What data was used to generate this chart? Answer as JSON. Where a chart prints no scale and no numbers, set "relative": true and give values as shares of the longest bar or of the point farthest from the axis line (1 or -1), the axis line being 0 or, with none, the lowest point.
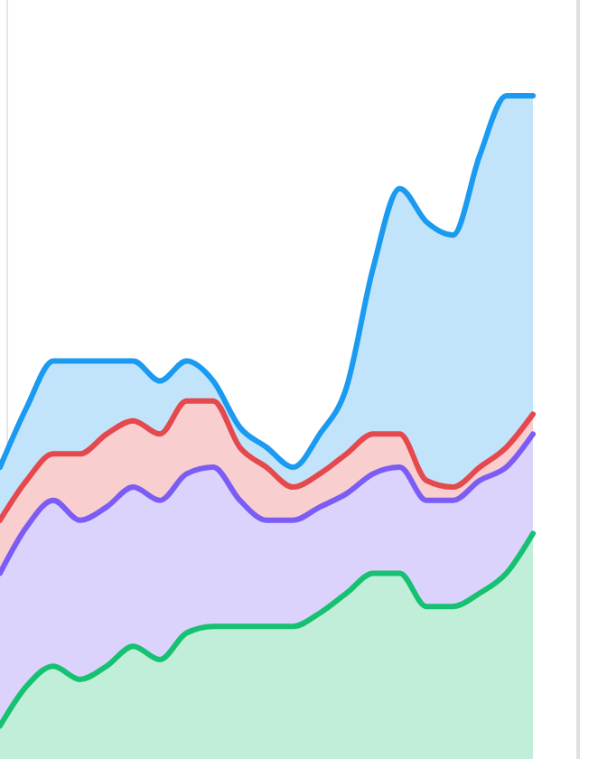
{
  "chart_data": {
    "type": "area",
    "relative": true,
    "categories": [
      null,
      null,
      null,
      null,
      null,
      null,
      null,
      null,
      null,
      null,
      null,
      null,
      null,
      null,
      null,
      null,
      null,
      null,
      null,
      null,
      null
    ],
    "series": [
      {
        "color": "#1a9af0",
        "values": [
          0.44,
          0.53,
          0.6,
          0.6,
          0.6,
          0.6,
          0.57,
          0.6,
          0.57,
          0.5,
          0.47,
          0.44,
          0.49,
          0.56,
          0.74,
          0.86,
          0.81,
          0.79,
          0.91,
          1,
          1
        ]
      },
      {
        "color": "#e5484d",
        "values": [
          0.36,
          0.42,
          0.46,
          0.46,
          0.49,
          0.51,
          0.49,
          0.54,
          0.54,
          0.47,
          0.44,
          0.41,
          0.43,
          0.46,
          0.49,
          0.49,
          0.42,
          0.41,
          0.44,
          0.47,
          0.52
        ]
      },
      {
        "color": "#7b5cf5",
        "values": [
          0.28,
          0.35,
          0.39,
          0.36,
          0.38,
          0.41,
          0.39,
          0.43,
          0.44,
          0.39,
          0.36,
          0.36,
          0.38,
          0.4,
          0.43,
          0.44,
          0.39,
          0.39,
          0.42,
          0.44,
          0.49
        ]
      },
      {
        "color": "#16c172",
        "values": [
          0.05,
          0.11,
          0.14,
          0.12,
          0.14,
          0.17,
          0.15,
          0.19,
          0.2,
          0.2,
          0.2,
          0.2,
          0.22,
          0.25,
          0.28,
          0.28,
          0.23,
          0.23,
          0.25,
          0.28,
          0.34
        ]
      }
    ]
  }
}
